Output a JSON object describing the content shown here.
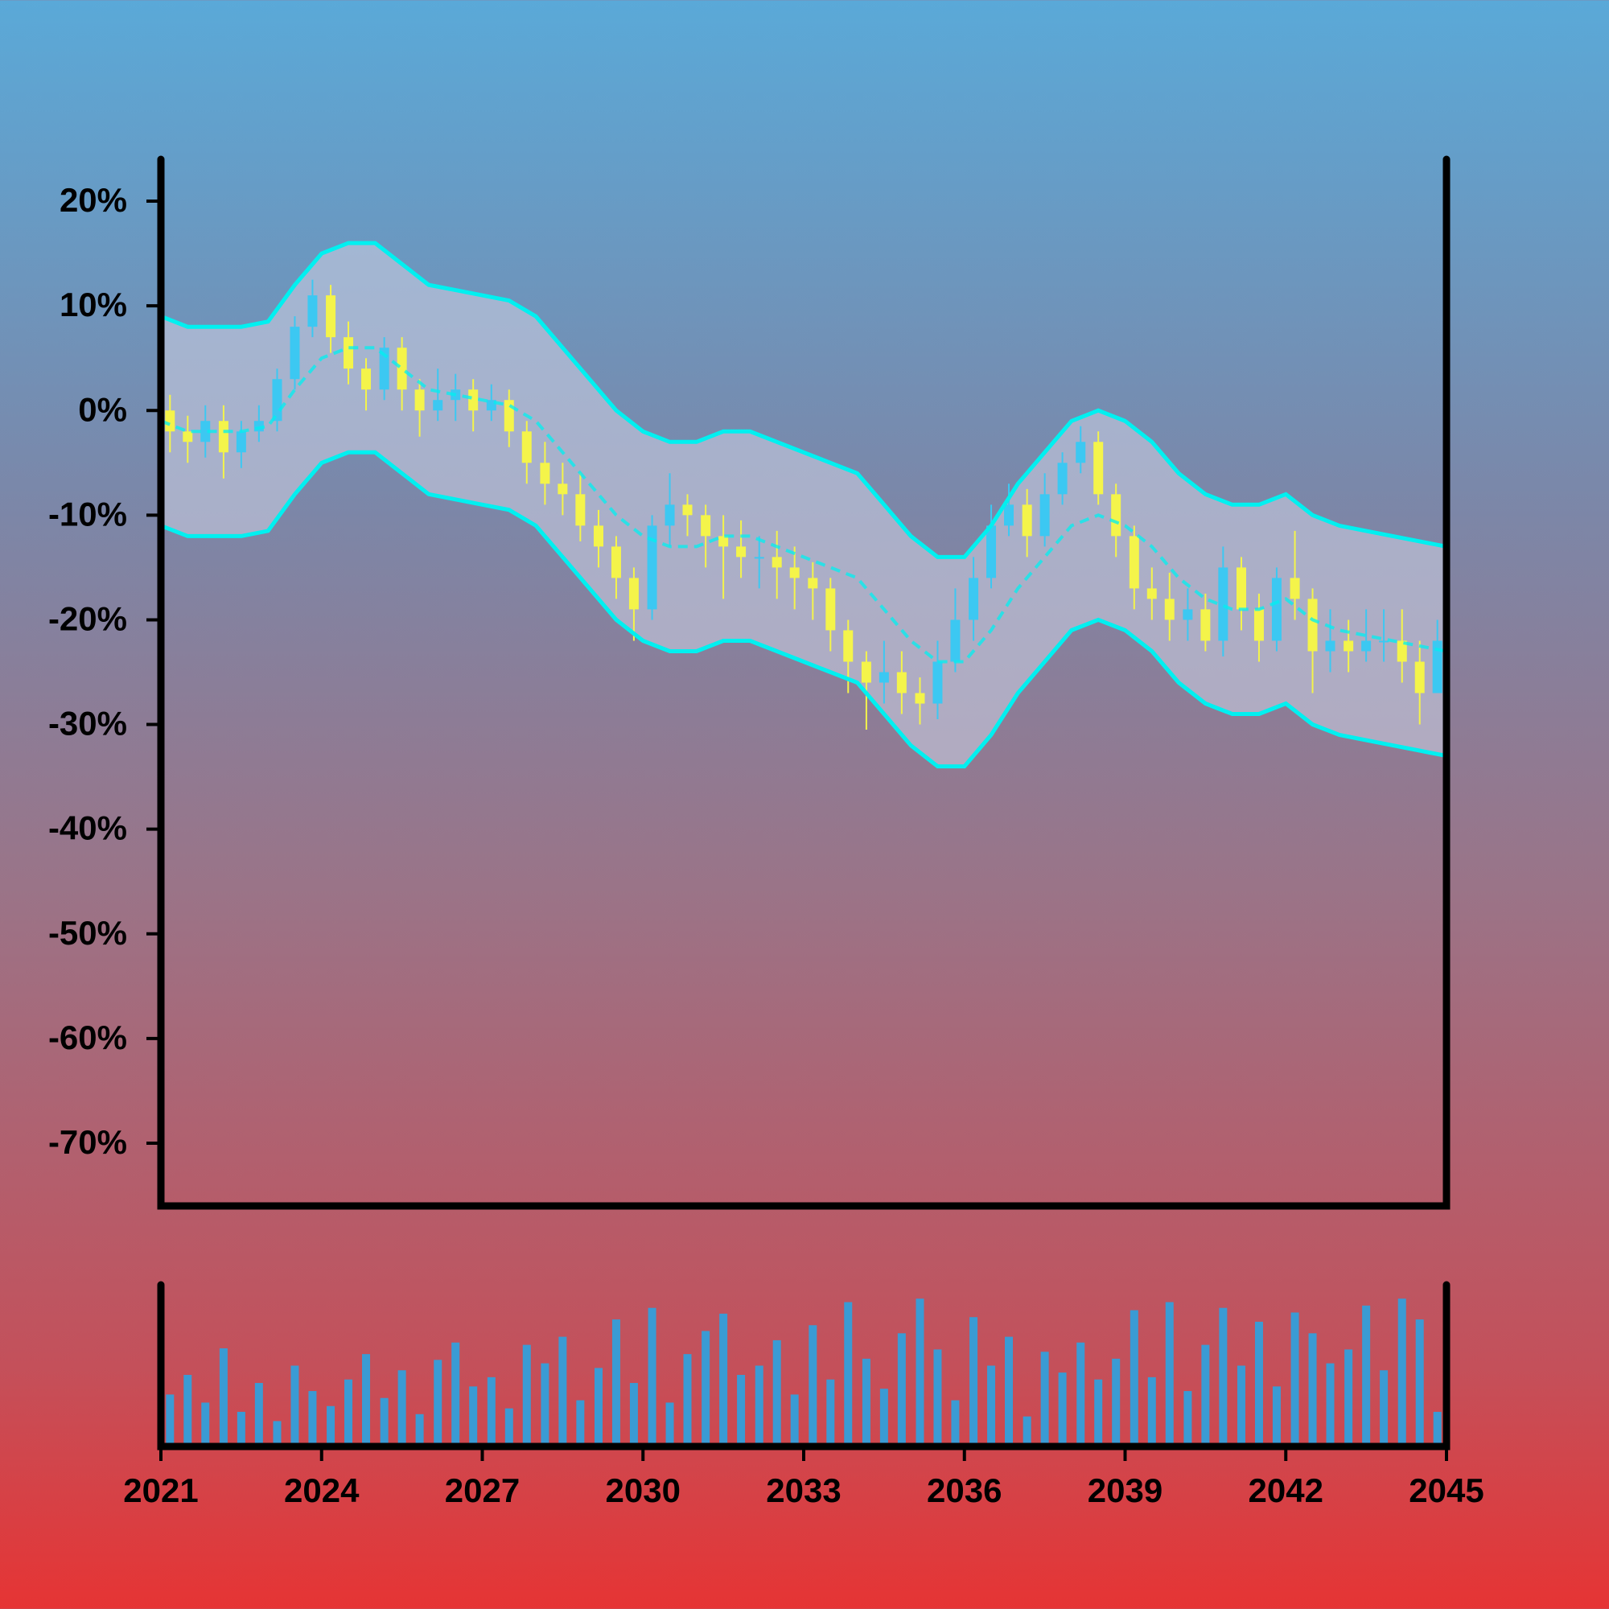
{
  "chart_data": {
    "type": "candlestick",
    "x": [
      2021.17,
      2021.5,
      2021.83,
      2022.17,
      2022.5,
      2022.83,
      2023.17,
      2023.5,
      2023.83,
      2024.17,
      2024.5,
      2024.83,
      2025.17,
      2025.5,
      2025.83,
      2026.17,
      2026.5,
      2026.83,
      2027.17,
      2027.5,
      2027.83,
      2028.17,
      2028.5,
      2028.83,
      2029.17,
      2029.5,
      2029.83,
      2030.17,
      2030.5,
      2030.83,
      2031.17,
      2031.5,
      2031.83,
      2032.17,
      2032.5,
      2032.83,
      2033.17,
      2033.5,
      2033.83,
      2034.17,
      2034.5,
      2034.83,
      2035.17,
      2035.5,
      2035.83,
      2036.17,
      2036.5,
      2036.83,
      2037.17,
      2037.5,
      2037.83,
      2038.17,
      2038.5,
      2038.83,
      2039.17,
      2039.5,
      2039.83,
      2040.17,
      2040.5,
      2040.83,
      2041.17,
      2041.5,
      2041.83,
      2042.17,
      2042.5,
      2042.83,
      2043.17,
      2043.5,
      2043.83,
      2044.17,
      2044.5,
      2044.83
    ],
    "open": [
      0,
      -2,
      -3,
      -1,
      -4,
      -2,
      -1,
      3,
      8,
      11,
      7,
      4,
      2,
      6,
      2,
      0,
      1,
      2,
      0,
      1,
      -2,
      -5,
      -7,
      -8,
      -11,
      -13,
      -16,
      -19,
      -11,
      -9,
      -10,
      -12,
      -13,
      -14,
      -14,
      -15,
      -16,
      -17,
      -21,
      -24,
      -26,
      -25,
      -27,
      -28,
      -24,
      -20,
      -16,
      -11,
      -9,
      -12,
      -8,
      -5,
      -3,
      -8,
      -12,
      -17,
      -18,
      -20,
      -19,
      -22,
      -15,
      -19,
      -22,
      -16,
      -18,
      -23,
      -22,
      -23,
      -22,
      -22,
      -24,
      -27
    ],
    "high": [
      1.5,
      -0.5,
      0.5,
      0.5,
      -1,
      0.5,
      4,
      9,
      12.5,
      12,
      8.5,
      5,
      7,
      7,
      3,
      4,
      3.5,
      3,
      2.5,
      2,
      -1,
      -3,
      -5,
      -6,
      -9.5,
      -12,
      -15,
      -10,
      -6,
      -8,
      -9,
      -10,
      -10.5,
      -12,
      -11.5,
      -13,
      -14.5,
      -16,
      -20,
      -23,
      -22,
      -23,
      -25.5,
      -22,
      -17,
      -14,
      -9,
      -7,
      -7.5,
      -6,
      -4,
      -1.5,
      -2,
      -7,
      -11,
      -15,
      -15.5,
      -17,
      -17.5,
      -13,
      -14,
      -17.5,
      -15,
      -11.5,
      -17,
      -19,
      -20,
      -19,
      -19,
      -19,
      -22,
      -20
    ],
    "low": [
      -4,
      -5,
      -4.5,
      -6.5,
      -5.5,
      -3,
      -2,
      2,
      7,
      5.5,
      2.5,
      0,
      1,
      0,
      -2.5,
      -1,
      -1,
      -2,
      -1,
      -3.5,
      -7,
      -9,
      -10,
      -12.5,
      -15,
      -18,
      -22,
      -20,
      -13,
      -12,
      -15,
      -18,
      -16,
      -17,
      -18,
      -19,
      -20,
      -23,
      -27,
      -30.5,
      -28,
      -29,
      -30,
      -29.5,
      -25,
      -22,
      -17,
      -12,
      -14,
      -13,
      -9,
      -6,
      -9,
      -14,
      -19,
      -20,
      -22,
      -22,
      -23,
      -23.5,
      -21,
      -24,
      -23,
      -20,
      -27,
      -25,
      -25,
      -24,
      -24,
      -26,
      -30,
      -27
    ],
    "close": [
      -2,
      -3,
      -1,
      -4,
      -2,
      -1,
      3,
      8,
      11,
      7,
      4,
      2,
      6,
      2,
      0,
      1,
      2,
      0,
      1,
      -2,
      -5,
      -7,
      -8,
      -11,
      -13,
      -16,
      -19,
      -11,
      -9,
      -10,
      -12,
      -13,
      -14,
      -14,
      -15,
      -16,
      -17,
      -21,
      -24,
      -26,
      -25,
      -27,
      -28,
      -24,
      -20,
      -16,
      -11,
      -9,
      -12,
      -8,
      -5,
      -3,
      -8,
      -12,
      -17,
      -18,
      -20,
      -19,
      -22,
      -15,
      -19,
      -22,
      -16,
      -18,
      -23,
      -22,
      -23,
      -22,
      -22,
      -24,
      -27,
      -22
    ],
    "volume": [
      45,
      62,
      38,
      85,
      30,
      55,
      22,
      70,
      48,
      35,
      58,
      80,
      42,
      66,
      28,
      75,
      90,
      52,
      60,
      33,
      88,
      72,
      95,
      40,
      68,
      110,
      55,
      120,
      38,
      80,
      100,
      115,
      62,
      70,
      92,
      45,
      105,
      58,
      125,
      76,
      50,
      98,
      128,
      84,
      40,
      112,
      70,
      95,
      26,
      82,
      64,
      90,
      58,
      76,
      118,
      60,
      125,
      48,
      88,
      120,
      70,
      108,
      52,
      116,
      98,
      72,
      84,
      122,
      66,
      128,
      110,
      30
    ],
    "xlim": [
      2021,
      2045
    ],
    "xticks": [
      2021,
      2024,
      2027,
      2030,
      2033,
      2036,
      2039,
      2042,
      2045
    ],
    "ylim": [
      -76,
      24
    ],
    "yticks": [
      {
        "value": 20,
        "label": "20%"
      },
      {
        "value": 10,
        "label": "10%"
      },
      {
        "value": 0,
        "label": "0%"
      },
      {
        "value": -10,
        "label": "-10%"
      },
      {
        "value": -20,
        "label": "-20%"
      },
      {
        "value": -30,
        "label": "-30%"
      },
      {
        "value": -40,
        "label": "-40%"
      },
      {
        "value": -50,
        "label": "-50%"
      },
      {
        "value": -60,
        "label": "-60%"
      },
      {
        "value": -70,
        "label": "-70%"
      }
    ],
    "volume_ylim": [
      0,
      140
    ],
    "up_color": "#3cc8f2",
    "down_color": "#f4f44a",
    "volume_color": "#3a9bd4",
    "bands": {
      "x": [
        2021,
        2021.5,
        2022,
        2022.5,
        2023,
        2023.5,
        2024,
        2024.5,
        2025,
        2025.5,
        2026,
        2026.5,
        2027,
        2027.5,
        2028,
        2028.5,
        2029,
        2029.5,
        2030,
        2030.5,
        2031,
        2031.5,
        2032,
        2032.5,
        2033,
        2033.5,
        2034,
        2034.5,
        2035,
        2035.5,
        2036,
        2036.5,
        2037,
        2037.5,
        2038,
        2038.5,
        2039,
        2039.5,
        2040,
        2040.5,
        2041,
        2041.5,
        2042,
        2042.5,
        2043,
        2043.5,
        2044,
        2044.5,
        2045
      ],
      "upper": [
        9,
        8,
        8,
        8,
        8.5,
        12,
        15,
        16,
        16,
        14,
        12,
        11.5,
        11,
        10.5,
        9,
        6,
        3,
        0,
        -2,
        -3,
        -3,
        -2,
        -2,
        -3,
        -4,
        -5,
        -6,
        -9,
        -12,
        -14,
        -14,
        -11,
        -7,
        -4,
        -1,
        0,
        -1,
        -3,
        -6,
        -8,
        -9,
        -9,
        -8,
        -10,
        -11,
        -11.5,
        -12,
        -12.5,
        -13
      ],
      "middle": [
        -1,
        -2,
        -2,
        -2,
        -1.5,
        2,
        5,
        6,
        6,
        4,
        2,
        1.5,
        1,
        0.5,
        -1,
        -4,
        -7,
        -10,
        -12,
        -13,
        -13,
        -12,
        -12,
        -13,
        -14,
        -15,
        -16,
        -19,
        -22,
        -24,
        -24,
        -21,
        -17,
        -14,
        -11,
        -10,
        -11,
        -13,
        -16,
        -18,
        -19,
        -19,
        -18,
        -20,
        -21,
        -21.5,
        -22,
        -22.5,
        -23
      ],
      "lower": [
        -11,
        -12,
        -12,
        -12,
        -11.5,
        -8,
        -5,
        -4,
        -4,
        -6,
        -8,
        -8.5,
        -9,
        -9.5,
        -11,
        -14,
        -17,
        -20,
        -22,
        -23,
        -23,
        -22,
        -22,
        -23,
        -24,
        -25,
        -26,
        -29,
        -32,
        -34,
        -34,
        -31,
        -27,
        -24,
        -21,
        -20,
        -21,
        -23,
        -26,
        -28,
        -29,
        -29,
        -28,
        -30,
        -31,
        -31.5,
        -32,
        -32.5,
        -33
      ],
      "color": "#00f0f0",
      "fill": "#c8cce0"
    }
  }
}
